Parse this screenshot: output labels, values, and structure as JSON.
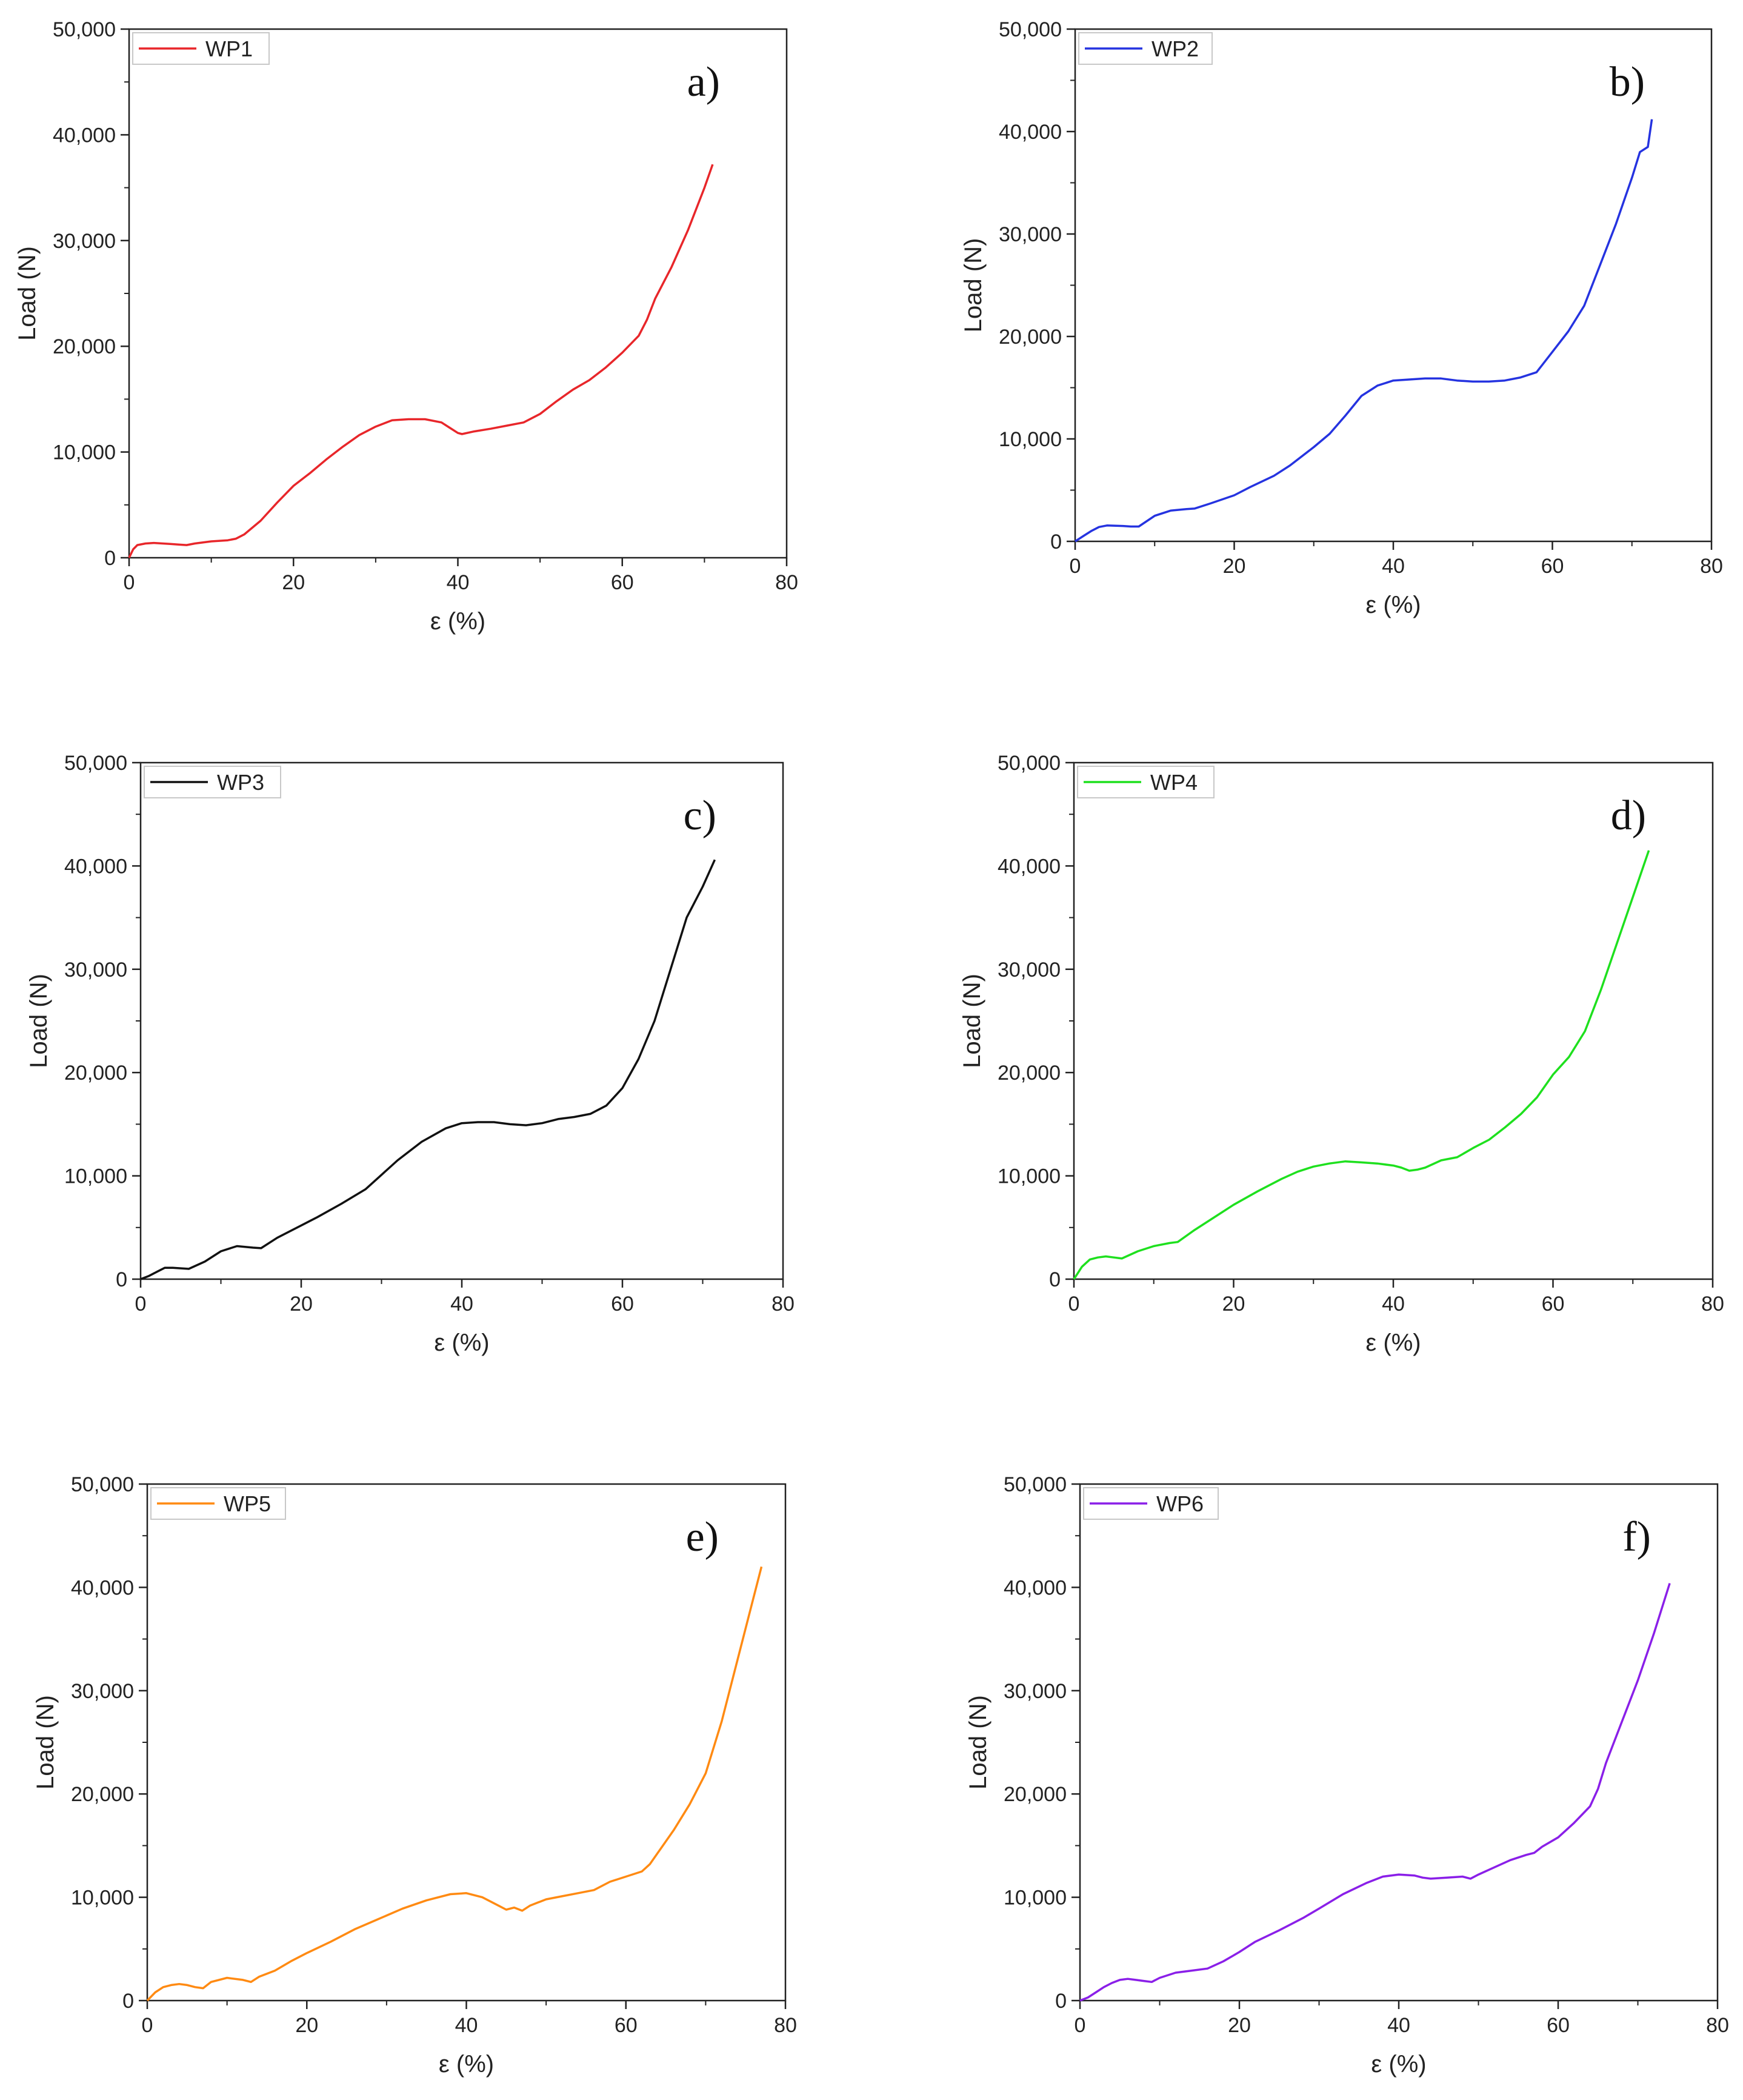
{
  "chart_data": [
    {
      "type": "line",
      "panel_label": "a)",
      "xlabel": "ε (%)",
      "ylabel": "Load (N)",
      "xlim": [
        0,
        80
      ],
      "ylim": [
        0,
        50000
      ],
      "xticks": [
        "0",
        "20",
        "40",
        "60",
        "80"
      ],
      "yticks": [
        "0",
        "10,000",
        "20,000",
        "30,000",
        "40,000",
        "50,000"
      ],
      "legend_position": "top-left",
      "series": [
        {
          "name": "WP1",
          "color": "#e8262a",
          "x": [
            0,
            0.5,
            1,
            2,
            3,
            5,
            6,
            7,
            8,
            10,
            12,
            13,
            14,
            16,
            18,
            20,
            22,
            24,
            26,
            28,
            30,
            32,
            34,
            36,
            38,
            39,
            40,
            40.5,
            42,
            44,
            46,
            48,
            50,
            52,
            54,
            56,
            58,
            60,
            62,
            63,
            64,
            66,
            68,
            70,
            71
          ],
          "y": [
            0,
            800,
            1200,
            1350,
            1400,
            1300,
            1250,
            1200,
            1350,
            1550,
            1650,
            1800,
            2200,
            3500,
            5200,
            6800,
            8000,
            9300,
            10500,
            11600,
            12400,
            13000,
            13100,
            13100,
            12800,
            12300,
            11800,
            11700,
            11950,
            12200,
            12500,
            12800,
            13600,
            14800,
            15900,
            16800,
            18000,
            19400,
            21000,
            22500,
            24500,
            27500,
            31000,
            35000,
            37200
          ]
        }
      ]
    },
    {
      "type": "line",
      "panel_label": "b)",
      "xlabel": "ε (%)",
      "ylabel": "Load (N)",
      "xlim": [
        0,
        80
      ],
      "ylim": [
        0,
        50000
      ],
      "xticks": [
        "0",
        "20",
        "40",
        "60",
        "80"
      ],
      "yticks": [
        "0",
        "10,000",
        "20,000",
        "30,000",
        "40,000",
        "50,000"
      ],
      "legend_position": "top-left",
      "series": [
        {
          "name": "WP2",
          "color": "#2533e0",
          "x": [
            0,
            1,
            2,
            3,
            4,
            6,
            7,
            8,
            10,
            12,
            14,
            15,
            17,
            20,
            22,
            25,
            27,
            30,
            32,
            34,
            36,
            38,
            40,
            42,
            44,
            46,
            48,
            50,
            52,
            54,
            56,
            58,
            60,
            62,
            64,
            66,
            68,
            70,
            71,
            72,
            72.5
          ],
          "y": [
            0,
            500,
            1000,
            1400,
            1550,
            1500,
            1450,
            1450,
            2500,
            3000,
            3150,
            3200,
            3700,
            4500,
            5300,
            6400,
            7400,
            9200,
            10500,
            12300,
            14200,
            15200,
            15700,
            15800,
            15900,
            15900,
            15700,
            15600,
            15600,
            15700,
            16000,
            16500,
            18500,
            20500,
            23000,
            27000,
            31000,
            35500,
            38000,
            38500,
            41200
          ]
        }
      ]
    },
    {
      "type": "line",
      "panel_label": "c)",
      "xlabel": "ε (%)",
      "ylabel": "Load (N)",
      "xlim": [
        0,
        80
      ],
      "ylim": [
        0,
        50000
      ],
      "xticks": [
        "0",
        "20",
        "40",
        "60",
        "80"
      ],
      "yticks": [
        "0",
        "10,000",
        "20,000",
        "30,000",
        "40,000",
        "50,000"
      ],
      "legend_position": "top-left",
      "series": [
        {
          "name": "WP3",
          "color": "#111111",
          "x": [
            0,
            1,
            2,
            3,
            4,
            6,
            8,
            10,
            12,
            14,
            15,
            17,
            20,
            22,
            25,
            28,
            30,
            32,
            35,
            38,
            40,
            42,
            44,
            46,
            48,
            50,
            52,
            54,
            56,
            58,
            60,
            62,
            64,
            66,
            68,
            70,
            71.5
          ],
          "y": [
            0,
            300,
            700,
            1100,
            1100,
            1000,
            1700,
            2700,
            3200,
            3050,
            3000,
            4000,
            5200,
            6000,
            7300,
            8700,
            10100,
            11500,
            13300,
            14600,
            15100,
            15200,
            15200,
            15000,
            14900,
            15100,
            15500,
            15700,
            16000,
            16800,
            18500,
            21300,
            25000,
            30000,
            35000,
            38000,
            40600
          ]
        }
      ]
    },
    {
      "type": "line",
      "panel_label": "d)",
      "xlabel": "ε (%)",
      "ylabel": "Load (N)",
      "xlim": [
        0,
        80
      ],
      "ylim": [
        0,
        50000
      ],
      "xticks": [
        "0",
        "20",
        "40",
        "60",
        "80"
      ],
      "yticks": [
        "0",
        "10,000",
        "20,000",
        "30,000",
        "40,000",
        "50,000"
      ],
      "legend_position": "top-left",
      "series": [
        {
          "name": "WP4",
          "color": "#1ee01e",
          "x": [
            0,
            1,
            2,
            3,
            4,
            5,
            6,
            8,
            10,
            12,
            13,
            15,
            18,
            20,
            23,
            26,
            28,
            30,
            32,
            34,
            36,
            38,
            40,
            41,
            42,
            43,
            44,
            46,
            48,
            50,
            52,
            54,
            56,
            58,
            60,
            62,
            64,
            66,
            68,
            70,
            72
          ],
          "y": [
            0,
            1200,
            1900,
            2100,
            2200,
            2100,
            2000,
            2700,
            3200,
            3500,
            3600,
            4700,
            6200,
            7200,
            8500,
            9700,
            10400,
            10900,
            11200,
            11400,
            11300,
            11200,
            11000,
            10800,
            10500,
            10600,
            10800,
            11500,
            11800,
            12700,
            13500,
            14700,
            16000,
            17600,
            19800,
            21500,
            24000,
            28000,
            32500,
            37000,
            41500
          ]
        }
      ]
    },
    {
      "type": "line",
      "panel_label": "e)",
      "xlabel": "ε (%)",
      "ylabel": "Load (N)",
      "xlim": [
        0,
        80
      ],
      "ylim": [
        0,
        50000
      ],
      "xticks": [
        "0",
        "20",
        "40",
        "60",
        "80"
      ],
      "yticks": [
        "0",
        "10,000",
        "20,000",
        "30,000",
        "40,000",
        "50,000"
      ],
      "legend_position": "top-left",
      "series": [
        {
          "name": "WP5",
          "color": "#ff8a12",
          "x": [
            0,
            1,
            2,
            3,
            4,
            5,
            6,
            7,
            8,
            10,
            12,
            13,
            14,
            16,
            18,
            20,
            23,
            26,
            29,
            32,
            35,
            38,
            40,
            42,
            44,
            45,
            46,
            47,
            48,
            50,
            52,
            54,
            56,
            58,
            60,
            62,
            63,
            64,
            66,
            68,
            70,
            72,
            74,
            76,
            77
          ],
          "y": [
            0,
            800,
            1300,
            1500,
            1600,
            1500,
            1300,
            1200,
            1800,
            2200,
            2000,
            1800,
            2300,
            2900,
            3800,
            4600,
            5700,
            6900,
            7900,
            8900,
            9700,
            10300,
            10400,
            10000,
            9200,
            8800,
            9000,
            8700,
            9200,
            9800,
            10100,
            10400,
            10700,
            11500,
            12000,
            12500,
            13200,
            14300,
            16500,
            19000,
            22000,
            27000,
            33000,
            39000,
            42000
          ]
        }
      ]
    },
    {
      "type": "line",
      "panel_label": "f)",
      "xlabel": "ε (%)",
      "ylabel": "Load (N)",
      "xlim": [
        0,
        80
      ],
      "ylim": [
        0,
        50000
      ],
      "xticks": [
        "0",
        "20",
        "40",
        "60",
        "80"
      ],
      "yticks": [
        "0",
        "10,000",
        "20,000",
        "30,000",
        "40,000",
        "50,000"
      ],
      "legend_position": "top-left",
      "series": [
        {
          "name": "WP6",
          "color": "#8a1fe8",
          "x": [
            0,
            1,
            2,
            3,
            4,
            5,
            6,
            7,
            8,
            9,
            10,
            12,
            14,
            16,
            18,
            20,
            22,
            25,
            28,
            30,
            33,
            36,
            38,
            40,
            42,
            43,
            44,
            46,
            48,
            49,
            50,
            52,
            54,
            56,
            57,
            58,
            60,
            62,
            64,
            65,
            66,
            68,
            70,
            72,
            74
          ],
          "y": [
            0,
            300,
            800,
            1300,
            1700,
            2000,
            2100,
            2000,
            1900,
            1800,
            2200,
            2700,
            2900,
            3100,
            3800,
            4700,
            5700,
            6800,
            8000,
            8900,
            10300,
            11400,
            12000,
            12200,
            12100,
            11900,
            11800,
            11900,
            12000,
            11800,
            12200,
            12900,
            13600,
            14100,
            14300,
            14900,
            15800,
            17200,
            18800,
            20500,
            23000,
            27000,
            31000,
            35500,
            40400
          ]
        }
      ]
    }
  ]
}
